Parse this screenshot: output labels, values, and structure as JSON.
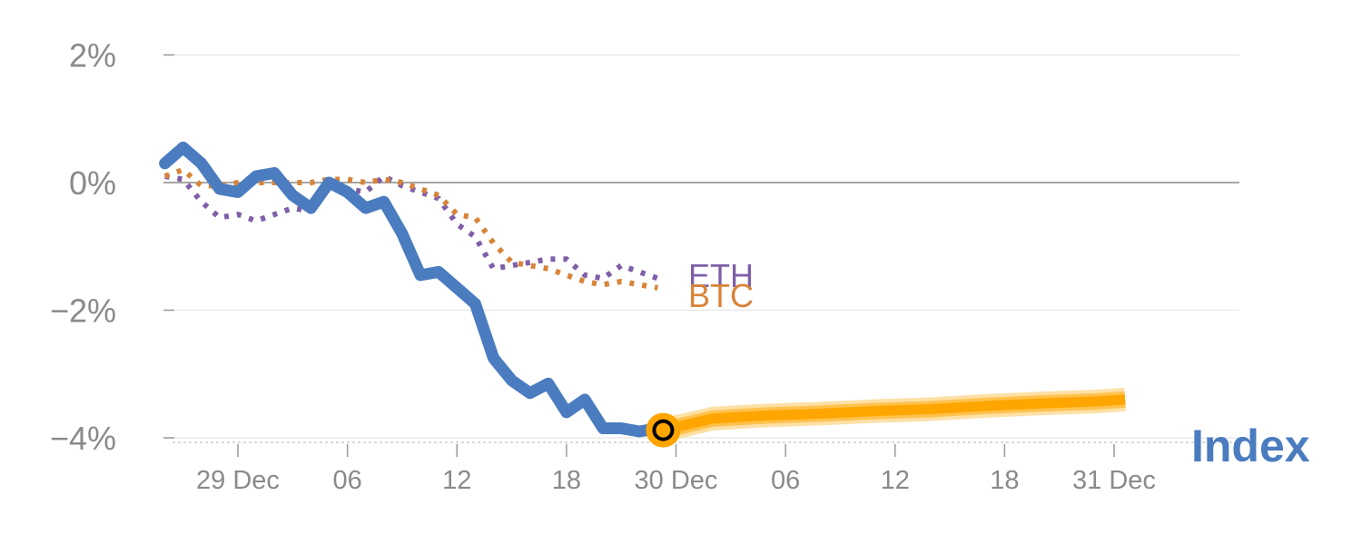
{
  "chart_data": {
    "type": "line",
    "title": "",
    "xlabel": "",
    "ylabel": "",
    "ylim": [
      -4,
      2
    ],
    "y_ticks": [
      2,
      0,
      -2,
      -4
    ],
    "y_tick_labels": [
      "2%",
      "0%",
      "−2%",
      "−4%"
    ],
    "x_ticks": [
      {
        "x": 4,
        "label": "29 Dec"
      },
      {
        "x": 10,
        "label": "06"
      },
      {
        "x": 16,
        "label": "12"
      },
      {
        "x": 22,
        "label": "18"
      },
      {
        "x": 28,
        "label": "30 Dec"
      },
      {
        "x": 34,
        "label": "06"
      },
      {
        "x": 40,
        "label": "12"
      },
      {
        "x": 46,
        "label": "18"
      },
      {
        "x": 52,
        "label": "31 Dec"
      }
    ],
    "xlim": [
      -2,
      53.5
    ],
    "series": [
      {
        "name": "ETH",
        "label": "ETH",
        "style": "dotted",
        "color": "#7f5fa8",
        "x": [
          0,
          1,
          2,
          3,
          4,
          5,
          6,
          7,
          8,
          9,
          10,
          11,
          12,
          13,
          14,
          15,
          16,
          17,
          18,
          19,
          20,
          21,
          22,
          23,
          24,
          25,
          26,
          27
        ],
        "values": [
          0.1,
          0.05,
          -0.3,
          -0.55,
          -0.5,
          -0.6,
          -0.5,
          -0.4,
          -0.45,
          0.0,
          -0.1,
          -0.15,
          0.1,
          -0.05,
          -0.15,
          -0.25,
          -0.65,
          -0.85,
          -1.35,
          -1.3,
          -1.25,
          -1.2,
          -1.2,
          -1.45,
          -1.5,
          -1.3,
          -1.4,
          -1.5
        ]
      },
      {
        "name": "BTC",
        "label": "BTC",
        "style": "dotted",
        "color": "#d8843a",
        "x": [
          0,
          1,
          2,
          3,
          4,
          5,
          6,
          7,
          8,
          9,
          10,
          11,
          12,
          13,
          14,
          15,
          16,
          17,
          18,
          19,
          20,
          21,
          22,
          23,
          24,
          25,
          26,
          27
        ],
        "values": [
          0.1,
          0.2,
          -0.05,
          -0.05,
          0.0,
          0.0,
          0.0,
          0.0,
          0.0,
          0.05,
          0.05,
          0.0,
          0.05,
          0.0,
          -0.1,
          -0.2,
          -0.5,
          -0.55,
          -0.95,
          -1.25,
          -1.3,
          -1.35,
          -1.45,
          -1.55,
          -1.6,
          -1.55,
          -1.6,
          -1.65
        ]
      },
      {
        "name": "Index",
        "label": "Index",
        "style": "solid",
        "color": "#4a7cbf",
        "x": [
          0,
          1,
          2,
          3,
          4,
          5,
          6,
          7,
          8,
          9,
          10,
          11,
          12,
          13,
          14,
          15,
          16,
          17,
          18,
          19,
          20,
          21,
          22,
          23,
          24,
          25,
          26,
          27,
          28
        ],
        "values": [
          0.3,
          0.55,
          0.3,
          -0.1,
          -0.15,
          0.1,
          0.15,
          -0.2,
          -0.4,
          0.0,
          -0.15,
          -0.4,
          -0.3,
          -0.8,
          -1.45,
          -1.4,
          -1.65,
          -1.9,
          -2.75,
          -3.1,
          -3.3,
          -3.15,
          -3.6,
          -3.4,
          -3.85,
          -3.85,
          -3.9,
          -3.85,
          -3.9
        ]
      },
      {
        "name": "Forecast",
        "label": "",
        "style": "band",
        "color": "#ffa500",
        "x": [
          27.3,
          30,
          33,
          36,
          39,
          42,
          45,
          48,
          51,
          52.6
        ],
        "values": [
          -3.88,
          -3.7,
          -3.65,
          -3.62,
          -3.58,
          -3.55,
          -3.5,
          -3.46,
          -3.43,
          -3.4
        ]
      }
    ],
    "marker": {
      "x": 27.3,
      "y": -3.88,
      "color": "#ffa500"
    },
    "grid": true,
    "legend": "inline-labels"
  }
}
